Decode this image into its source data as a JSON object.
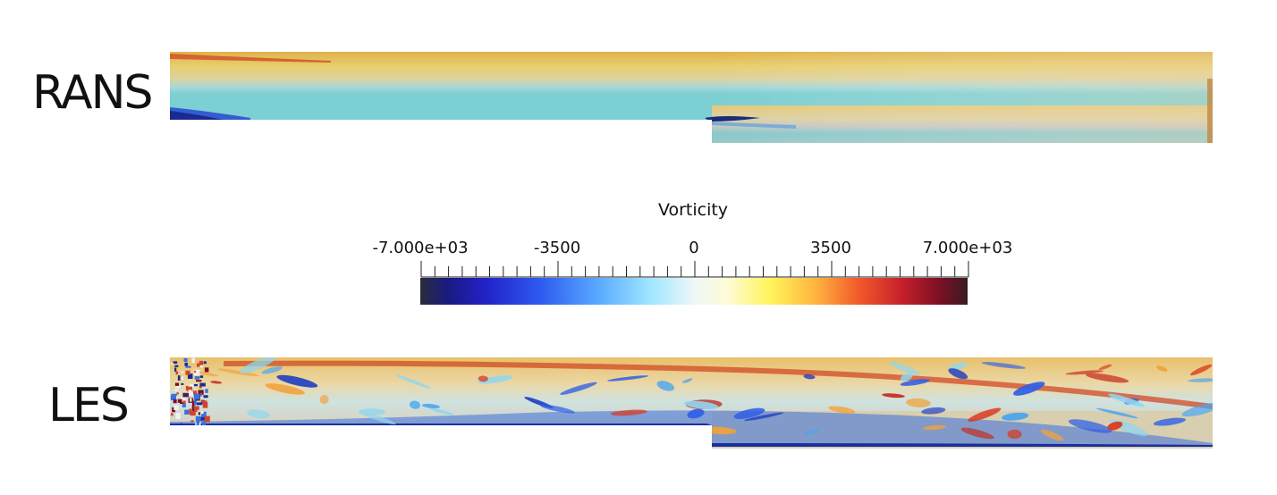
{
  "panels": {
    "rans_label": "RANS",
    "les_label": "LES"
  },
  "colorbar": {
    "title": "Vorticity",
    "tick_labels": [
      "-7.000e+03",
      "-3500",
      "0",
      "3500",
      "7.000e+03"
    ],
    "range": [
      -7000,
      7000
    ],
    "colormap_colors": [
      "#2b2b3a",
      "#1a1a80",
      "#2222c8",
      "#2e5bf0",
      "#56a6ff",
      "#9fe6ff",
      "#eef7f8",
      "#fff45a",
      "#ffb640",
      "#f25a2a",
      "#c6202a",
      "#3a1a22"
    ]
  }
}
